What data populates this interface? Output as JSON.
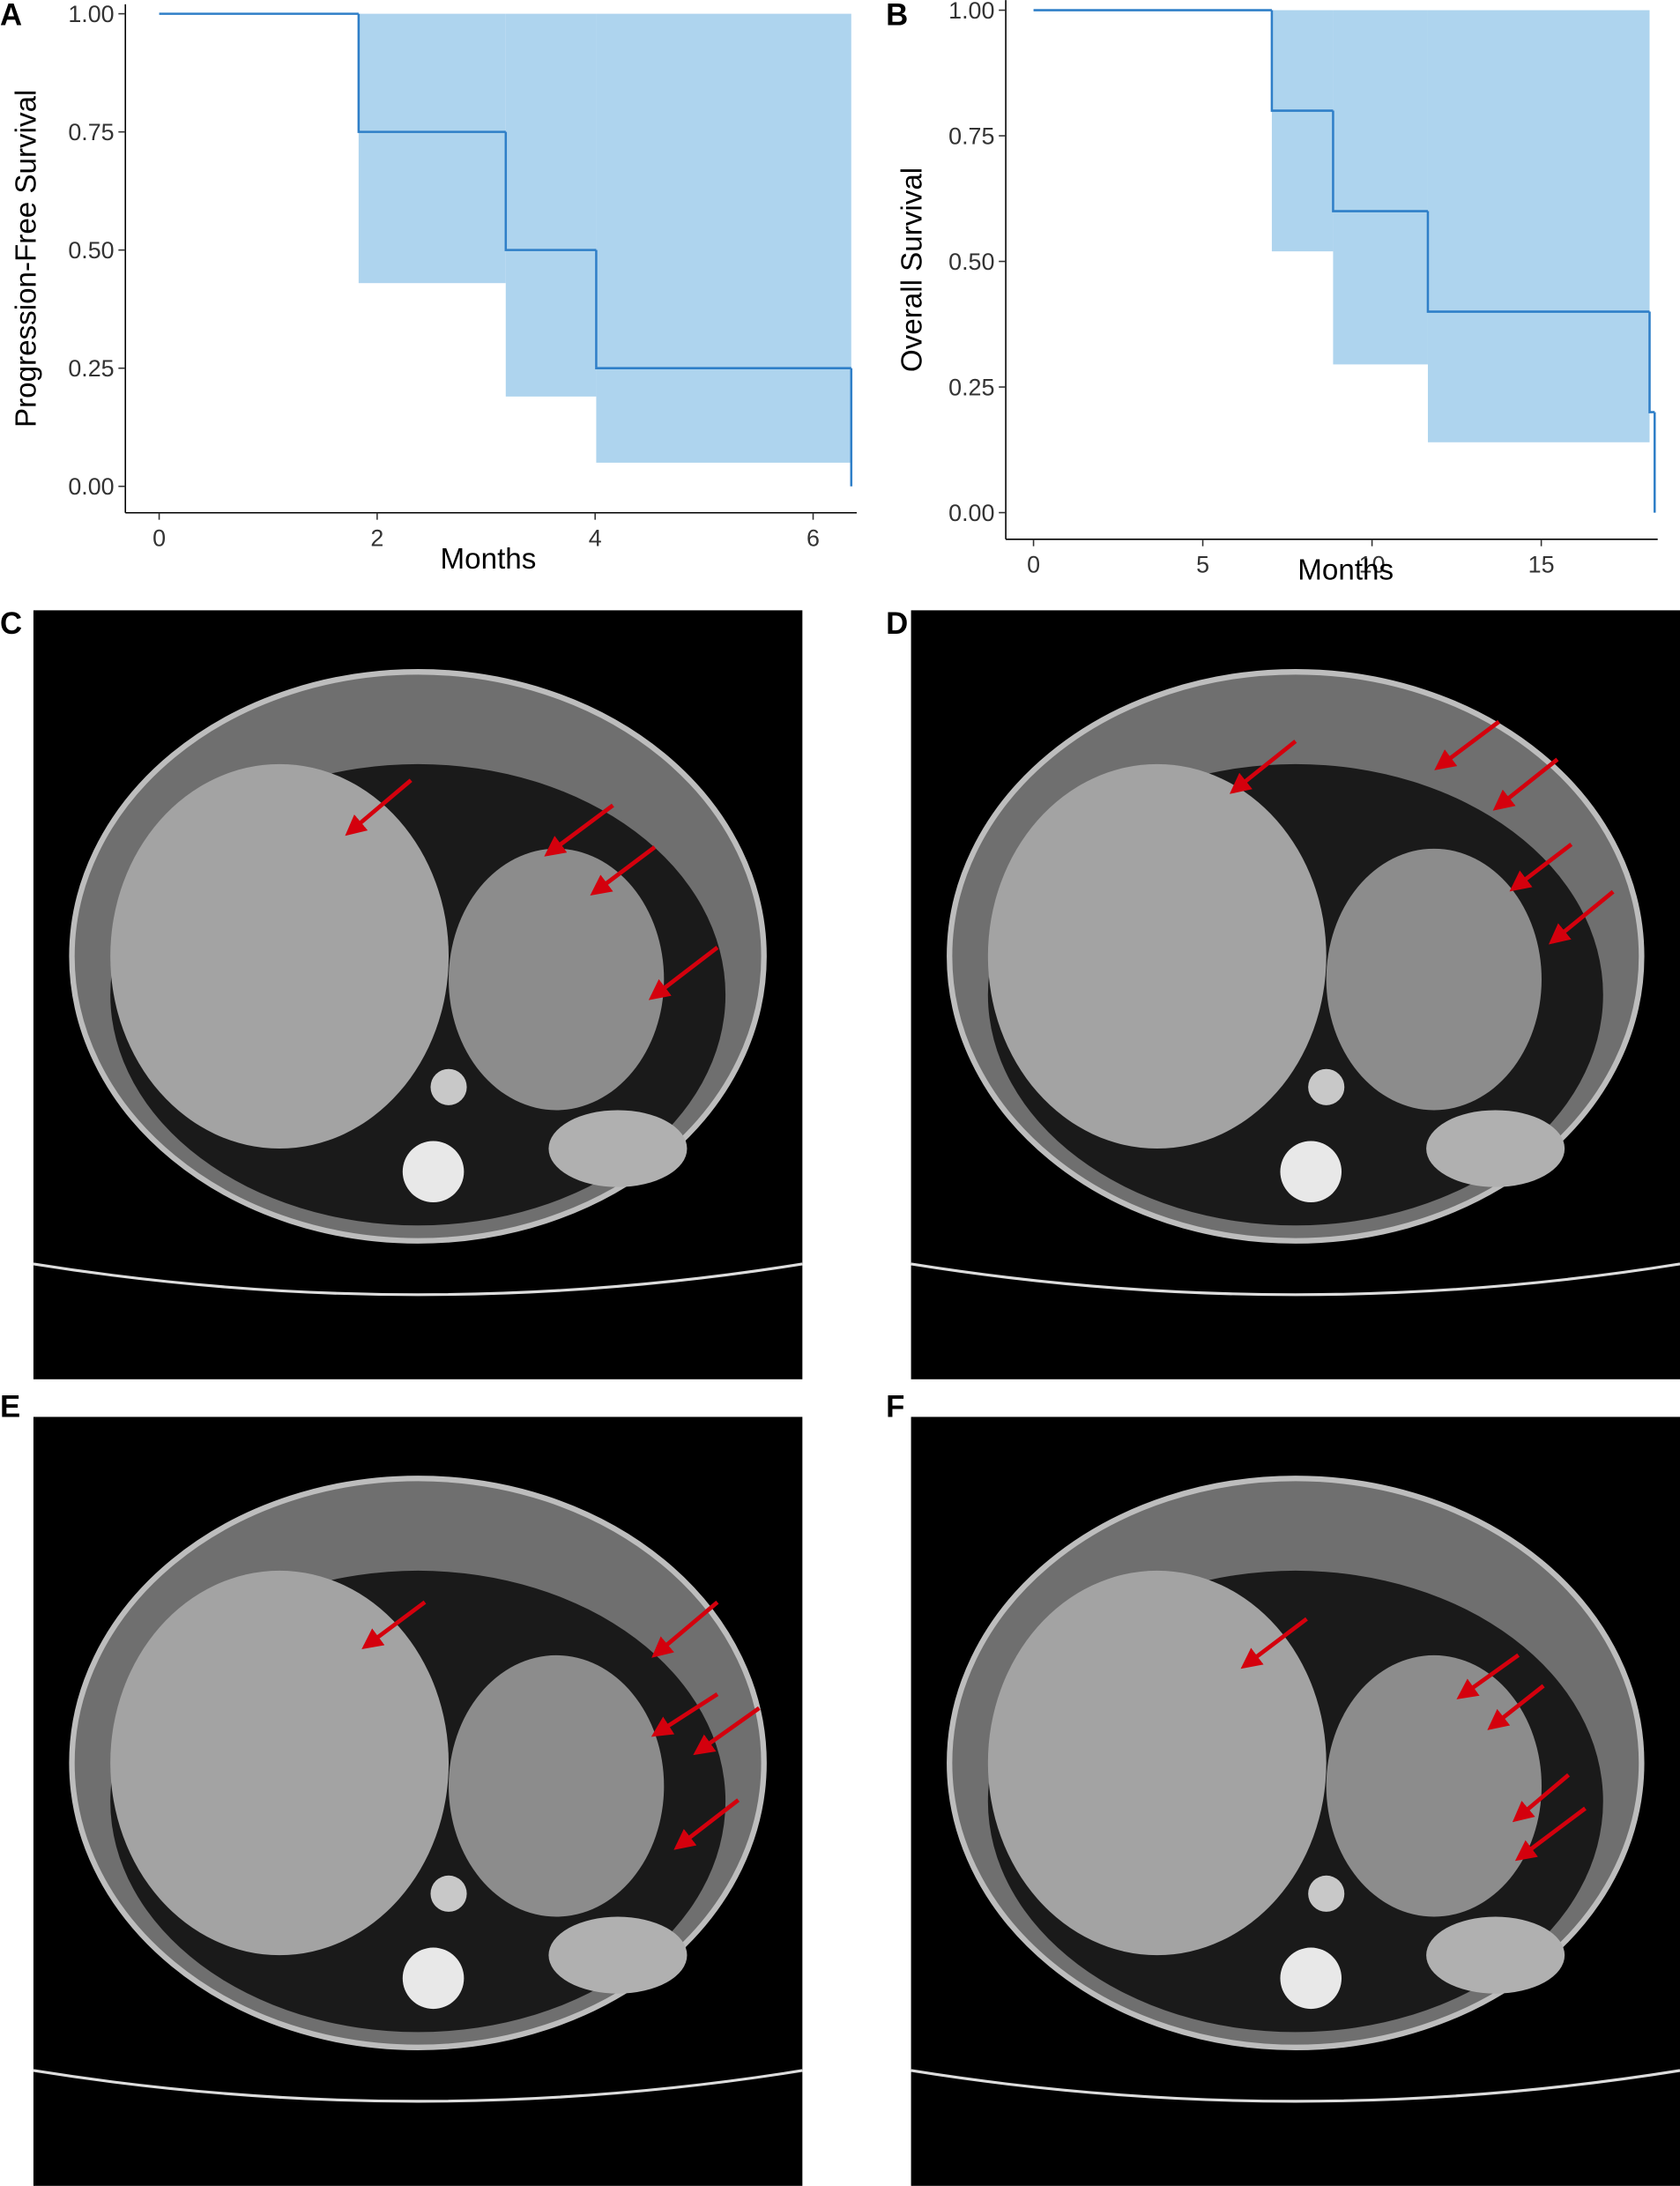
{
  "chart_data": [
    {
      "type": "step",
      "panel_label": "A",
      "xlabel": "Months",
      "ylabel": "Progression-Free Survival",
      "x": [
        0,
        1.83,
        3.18,
        4.01,
        6.35
      ],
      "values": [
        1,
        0.75,
        0.5,
        0.25,
        0
      ],
      "ci_lower": [
        1,
        0.43,
        0.19,
        0.05,
        null
      ],
      "ci_upper": [
        1,
        1,
        1,
        1,
        null
      ],
      "color": "#2f7fc8",
      "band_color": "#aed4ee",
      "xlim": [
        -0.31,
        6.4
      ],
      "xticks": [
        0,
        2,
        4,
        6
      ],
      "ylim": [
        -0.056,
        1.02
      ],
      "yticks": [
        {
          "value": 0,
          "label": "0.00"
        },
        {
          "value": 0.25,
          "label": "0.25"
        },
        {
          "value": 0.5,
          "label": "0.50"
        },
        {
          "value": 0.75,
          "label": "0.75"
        },
        {
          "value": 1,
          "label": "1.00"
        }
      ]
    },
    {
      "type": "step",
      "panel_label": "B",
      "xlabel": "Months",
      "ylabel": "Overall Survival",
      "x": [
        0,
        7.04,
        8.85,
        11.65,
        18.2,
        18.35
      ],
      "values": [
        1,
        0.8,
        0.6,
        0.4,
        0.2,
        0
      ],
      "ci_lower": [
        1,
        0.52,
        0.295,
        0.14,
        null,
        null
      ],
      "ci_upper": [
        1,
        1,
        1,
        1,
        null,
        null
      ],
      "color": "#2f7fc8",
      "band_color": "#aed4ee",
      "xlim": [
        -0.82,
        18.44
      ],
      "xticks": [
        0,
        5,
        10,
        15
      ],
      "ylim": [
        -0.053,
        1.02
      ],
      "yticks": [
        {
          "value": 0,
          "label": "0.00"
        },
        {
          "value": 0.25,
          "label": "0.25"
        },
        {
          "value": 0.5,
          "label": "0.50"
        },
        {
          "value": 0.75,
          "label": "0.75"
        },
        {
          "value": 1,
          "label": "1.00"
        }
      ]
    }
  ],
  "image_panels": [
    {
      "label": "C"
    },
    {
      "label": "D"
    },
    {
      "label": "E"
    },
    {
      "label": "F"
    }
  ]
}
